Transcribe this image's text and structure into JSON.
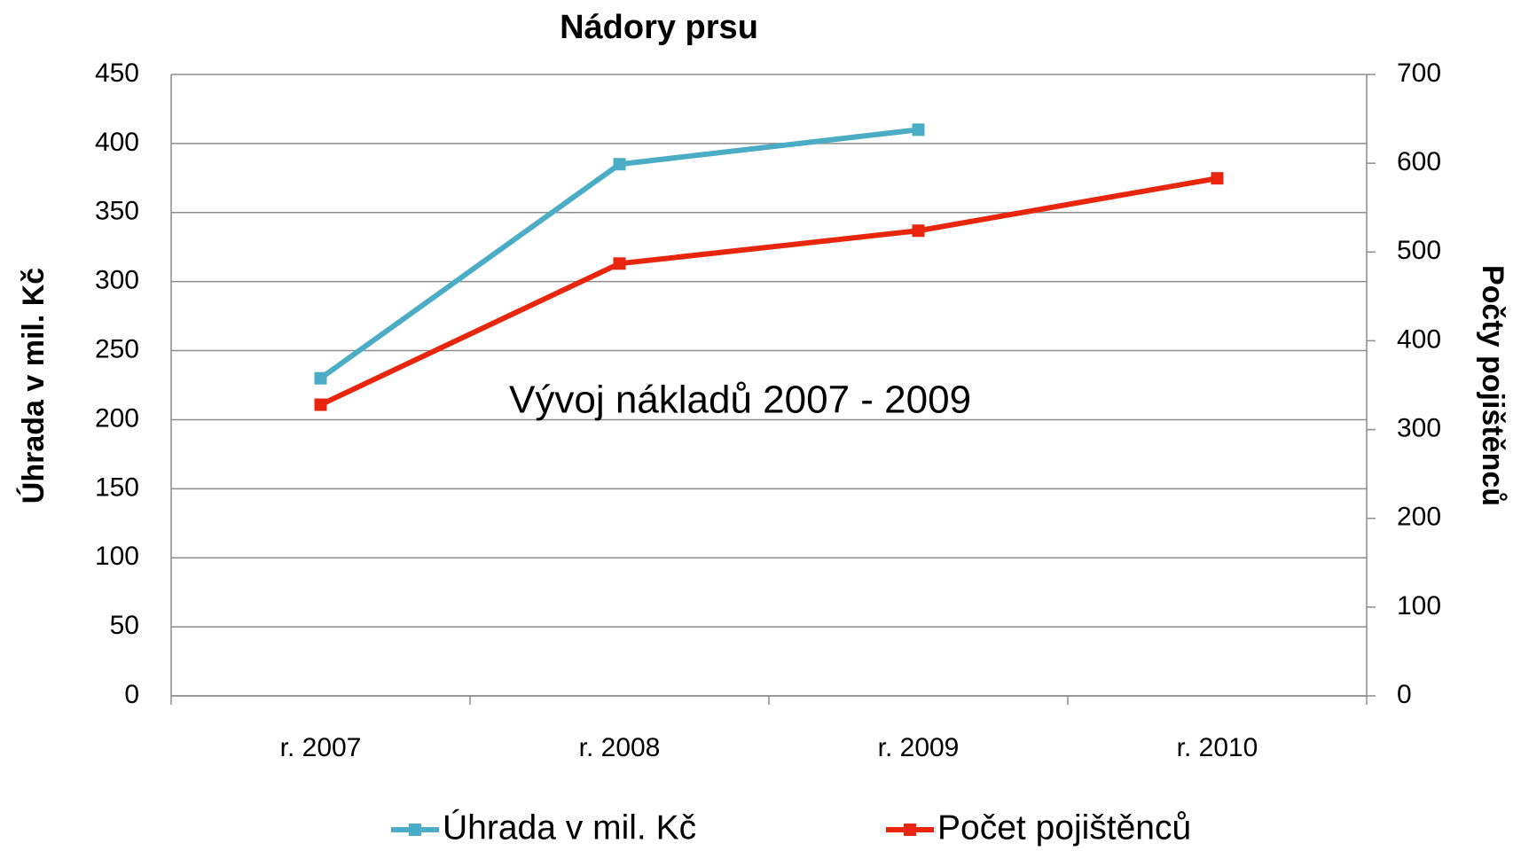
{
  "chart_data": {
    "type": "line",
    "title": "Nádory prsu",
    "y_label": "Úhrada v mil. Kč",
    "y2_label": "Počty pojištěnců",
    "annotation": "Vývoj nákladů  2007 - 2009",
    "categories": [
      "r. 2007",
      "r. 2008",
      "r. 2009",
      "r. 2010"
    ],
    "series": [
      {
        "name": "Úhrada v mil. Kč",
        "color": "#4bacc6",
        "values": [
          230,
          385,
          410,
          null
        ]
      },
      {
        "name": "Počet pojištěnců",
        "color": "#e8260e",
        "axis": "y2",
        "values": [
          328,
          487,
          524,
          583
        ]
      }
    ],
    "ylim": [
      0,
      450
    ],
    "yticks": [
      0,
      50,
      100,
      150,
      200,
      250,
      300,
      350,
      400,
      450
    ],
    "y2lim": [
      0,
      700
    ],
    "y2ticks": [
      0,
      100,
      200,
      300,
      400,
      500,
      600,
      700
    ],
    "grid": true,
    "legend": "bottom"
  }
}
